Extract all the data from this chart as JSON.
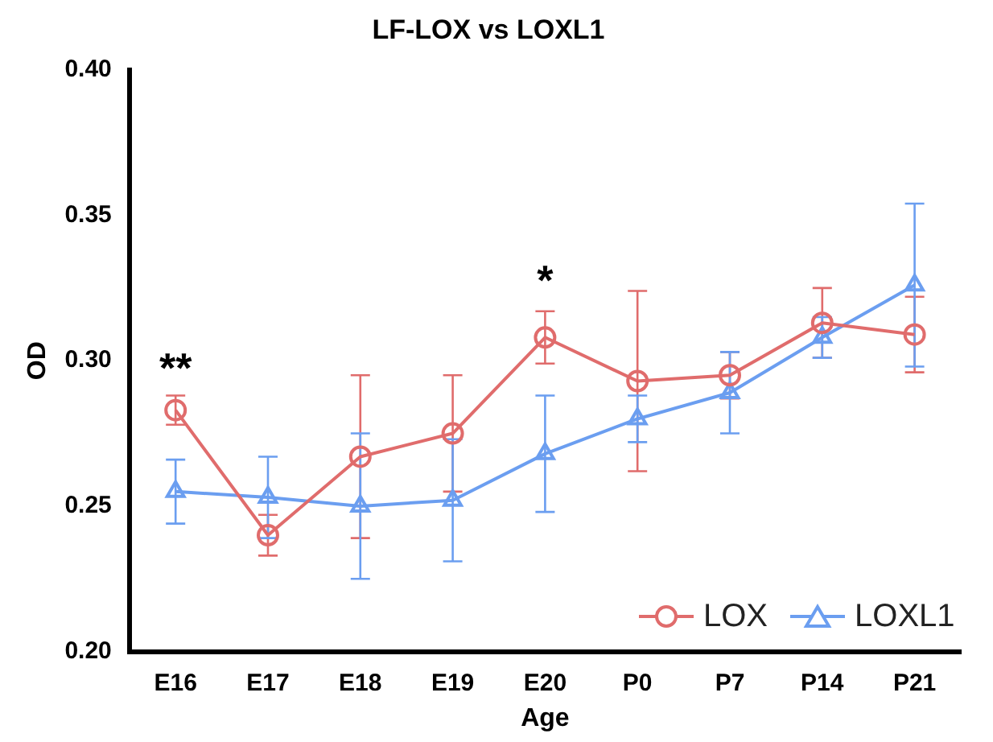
{
  "chart_data": {
    "type": "line",
    "title": "LF-LOX vs LOXL1",
    "xlabel": "Age",
    "ylabel": "OD",
    "categories": [
      "E16",
      "E17",
      "E18",
      "E19",
      "E20",
      "P0",
      "P7",
      "P14",
      "P21"
    ],
    "series": [
      {
        "name": "LOX",
        "color": "#e06c6c",
        "marker": "circle",
        "values": [
          0.283,
          0.24,
          0.267,
          0.275,
          0.308,
          0.293,
          0.295,
          0.313,
          0.309
        ],
        "errors": [
          0.005,
          0.007,
          0.028,
          0.02,
          0.009,
          0.031,
          0.008,
          0.012,
          0.013
        ]
      },
      {
        "name": "LOXL1",
        "color": "#6b9ef0",
        "marker": "triangle",
        "values": [
          0.255,
          0.253,
          0.25,
          0.252,
          0.268,
          0.28,
          0.289,
          0.308,
          0.326
        ],
        "errors": [
          0.011,
          0.014,
          0.025,
          0.021,
          0.02,
          0.008,
          0.014,
          0.007,
          0.028
        ]
      }
    ],
    "ylim": [
      0.2,
      0.4
    ],
    "yticks": [
      {
        "value": 0.2,
        "label": "0.20"
      },
      {
        "value": 0.25,
        "label": "0.25"
      },
      {
        "value": 0.3,
        "label": "0.30"
      },
      {
        "value": 0.35,
        "label": "0.35"
      },
      {
        "value": 0.4,
        "label": "0.40"
      }
    ],
    "annotations": [
      "**",
      "*"
    ],
    "grid": false,
    "legend": "bottom right"
  }
}
